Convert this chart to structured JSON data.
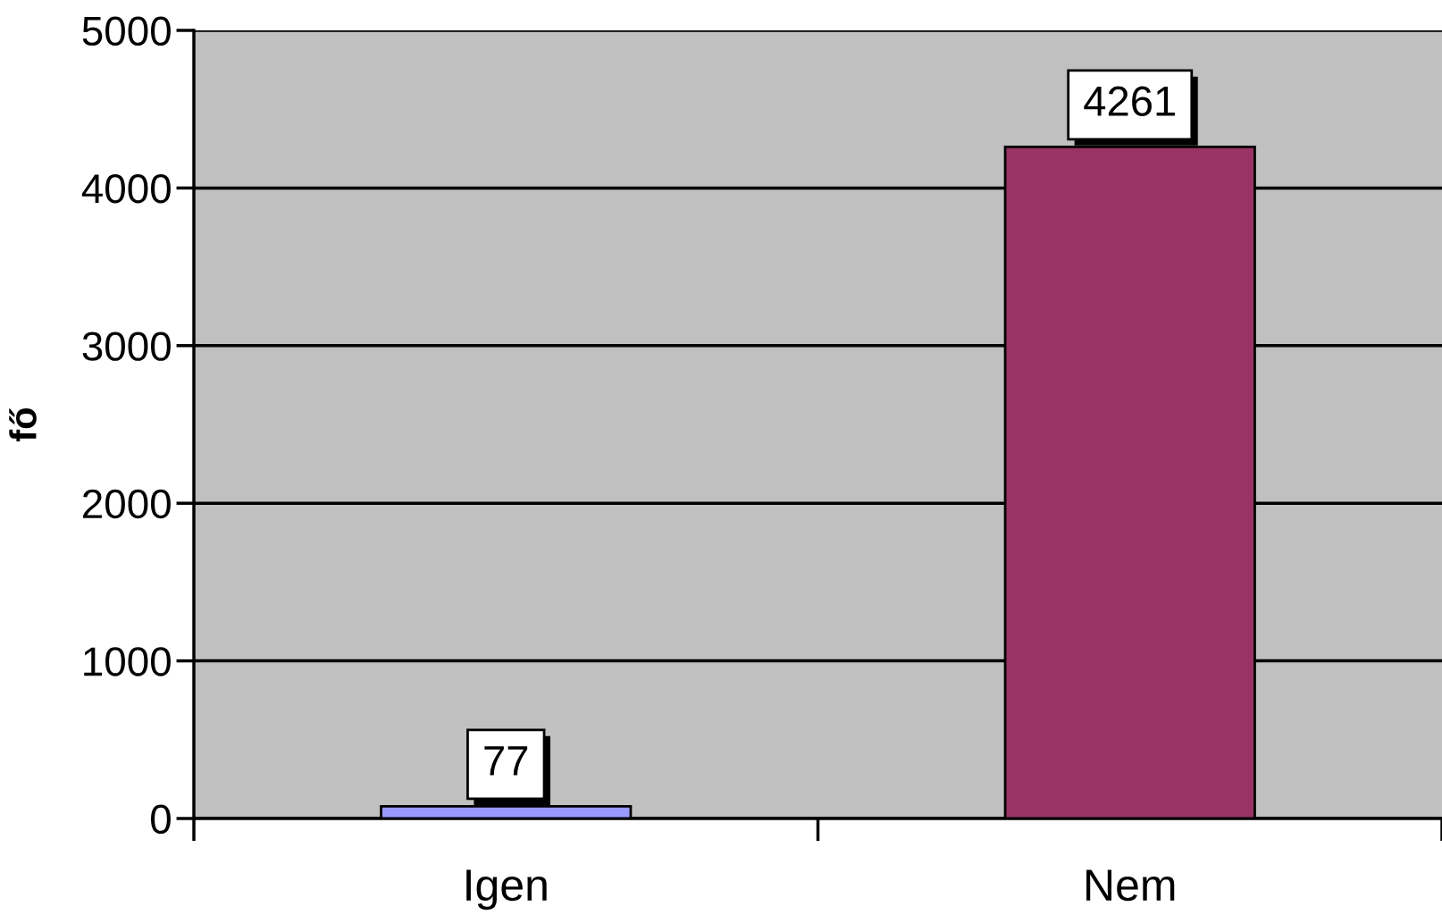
{
  "chart_data": {
    "type": "bar",
    "ylabel": "fő",
    "categories": [
      "Igen",
      "Nem"
    ],
    "values": [
      77,
      4261
    ],
    "colors": [
      "#9999ff",
      "#993366"
    ],
    "ylim": [
      0,
      5000
    ],
    "yticks": [
      0,
      1000,
      2000,
      3000,
      4000,
      5000
    ],
    "grid": "y",
    "data_labels": true
  }
}
